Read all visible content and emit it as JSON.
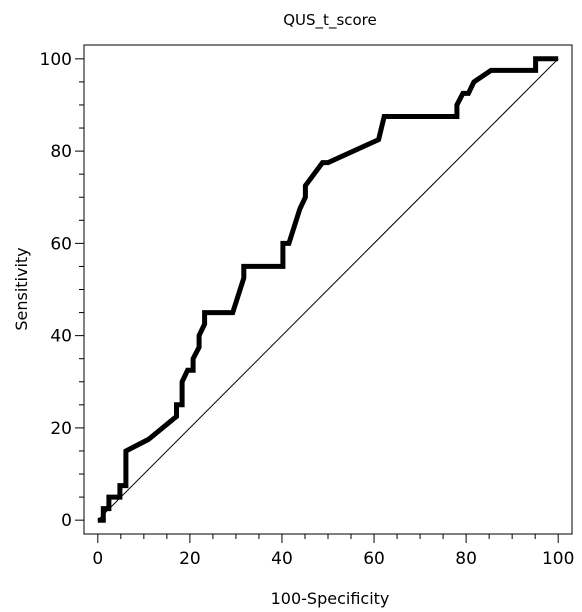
{
  "chart_data": {
    "type": "line",
    "title": "QUS_t_score",
    "xlabel": "100-Specificity",
    "ylabel": "Sensitivity",
    "xlim": [
      -3,
      103
    ],
    "ylim": [
      -3,
      103
    ],
    "x_ticks": [
      0,
      20,
      40,
      60,
      80,
      100
    ],
    "y_ticks": [
      0,
      20,
      40,
      60,
      80,
      100
    ],
    "minor_tick_step": 5,
    "grid": false,
    "legend": "none",
    "series": [
      {
        "style": "roc-step",
        "color": "#000000",
        "points": [
          [
            0,
            0
          ],
          [
            1.2,
            0
          ],
          [
            1.2,
            2.5
          ],
          [
            2.4,
            2.5
          ],
          [
            2.4,
            5
          ],
          [
            4.8,
            5
          ],
          [
            4.8,
            7.5
          ],
          [
            6.1,
            7.5
          ],
          [
            6.1,
            15
          ],
          [
            11,
            17.5
          ],
          [
            17.1,
            22.5
          ],
          [
            17.1,
            25
          ],
          [
            18.3,
            25
          ],
          [
            18.3,
            30
          ],
          [
            19.5,
            32.5
          ],
          [
            20.7,
            32.5
          ],
          [
            20.7,
            35
          ],
          [
            22,
            37.5
          ],
          [
            22,
            40
          ],
          [
            23.2,
            42.5
          ],
          [
            23.2,
            45
          ],
          [
            29.3,
            45
          ],
          [
            31.7,
            52.5
          ],
          [
            31.7,
            55
          ],
          [
            40.2,
            55
          ],
          [
            40.2,
            60
          ],
          [
            41.5,
            60
          ],
          [
            43.9,
            67.5
          ],
          [
            45.1,
            70
          ],
          [
            45.1,
            72.5
          ],
          [
            48.8,
            77.5
          ],
          [
            50,
            77.5
          ],
          [
            61,
            82.5
          ],
          [
            62.2,
            87.5
          ],
          [
            78,
            87.5
          ],
          [
            78,
            90
          ],
          [
            79.3,
            92.5
          ],
          [
            80.5,
            92.5
          ],
          [
            81.7,
            95
          ],
          [
            85.4,
            97.5
          ],
          [
            95.1,
            97.5
          ],
          [
            95.1,
            100
          ],
          [
            100,
            100
          ]
        ]
      },
      {
        "style": "reference-diagonal",
        "color": "#000000",
        "points": [
          [
            0,
            0
          ],
          [
            100,
            100
          ]
        ]
      }
    ]
  }
}
